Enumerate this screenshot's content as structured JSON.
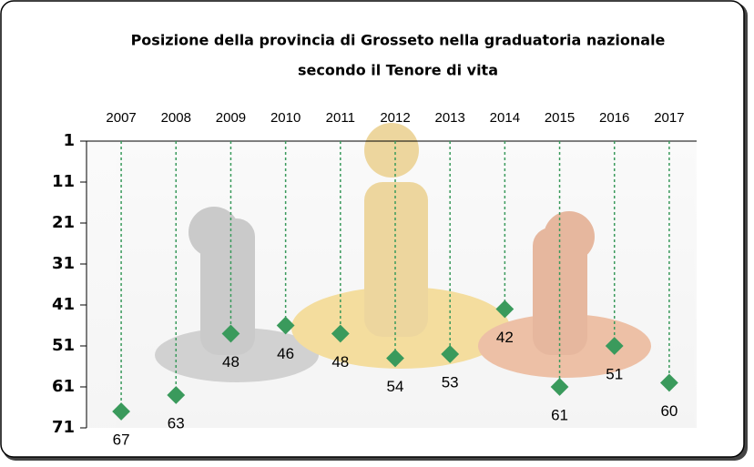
{
  "chart_data": {
    "type": "dot",
    "title": [
      "Posizione della provincia di Grosseto nella graduatoria nazionale",
      "secondo il Tenore di vita"
    ],
    "categories": [
      "2007",
      "2008",
      "2009",
      "2010",
      "2011",
      "2012",
      "2013",
      "2014",
      "2015",
      "2016",
      "2017"
    ],
    "values": [
      67,
      63,
      48,
      46,
      48,
      54,
      53,
      42,
      61,
      51,
      60
    ],
    "color": "#3a9a5c",
    "ylim": [
      1,
      71
    ],
    "yticks": [
      1,
      11,
      21,
      31,
      41,
      51,
      61,
      71
    ],
    "y_inverted": true,
    "drop_lines": true
  }
}
